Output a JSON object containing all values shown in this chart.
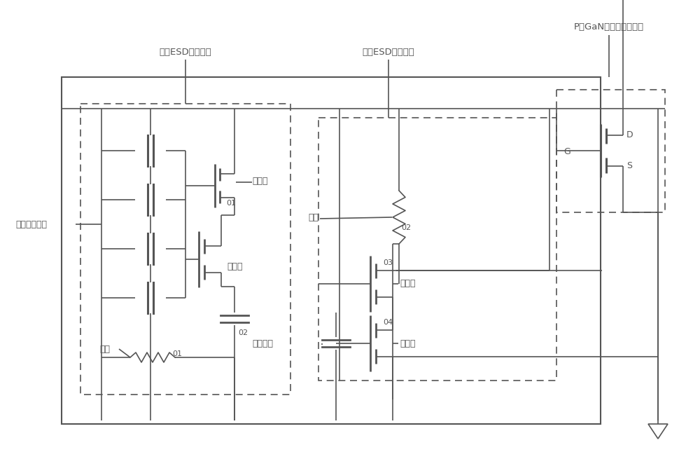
{
  "bg_color": "#ffffff",
  "line_color": "#555555",
  "figsize": [
    10.0,
    6.45
  ],
  "dpi": 100,
  "title_ptype_gan": "P型GaN增强型功率器件",
  "label_forward_esd": "正向ESD保护模块",
  "label_reverse_esd": "负向ESD保护模块",
  "label_clamp_diode": "钳位二极管串",
  "label_resistor": "电阻",
  "label_capacitor": "充电电容",
  "label_mosfet": "效应管",
  "label_G": "G",
  "label_D": "D",
  "label_S": "S",
  "label_01": "01",
  "label_02": "02",
  "label_03": "03",
  "label_04": "04"
}
